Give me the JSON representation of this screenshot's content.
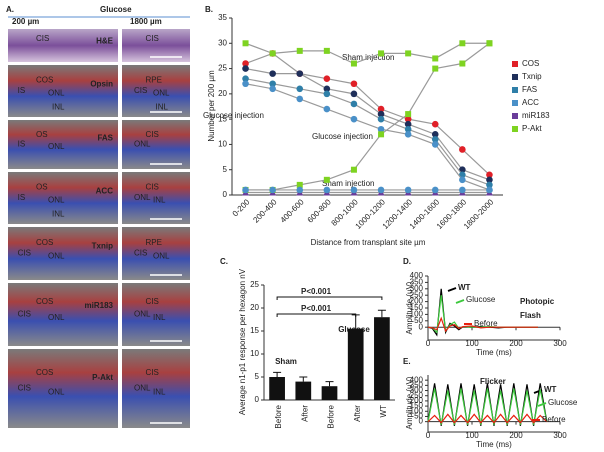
{
  "panel_a": {
    "title": "A.",
    "left_label": "200 µm",
    "center_label": "Glucose",
    "right_label": "1800 µm",
    "rows": [
      {
        "stain": "H&E",
        "stain_color": "#000000",
        "left": [
          "CIS"
        ],
        "right": [
          "CIS"
        ]
      },
      {
        "stain": "Opsin",
        "stain_color": "#e01818",
        "left": [
          "COS",
          "IS",
          "ONL",
          "INL"
        ],
        "right": [
          "RPE",
          "CIS",
          "ONL",
          "INL"
        ]
      },
      {
        "stain": "FAS",
        "stain_color": "#e01818",
        "left": [
          "OS",
          "IS",
          "ONL"
        ],
        "right": [
          "CIS",
          "ONL"
        ]
      },
      {
        "stain": "ACC",
        "stain_color": "#e01818",
        "left": [
          "OS",
          "IS",
          "ONL",
          "INL"
        ],
        "right": [
          "CIS",
          "ONL",
          "INL"
        ]
      },
      {
        "stain": "Txnip",
        "stain_color": "#e01818",
        "left": [
          "COS",
          "CIS",
          "ONL"
        ],
        "right": [
          "RPE",
          "CIS",
          "ONL"
        ]
      },
      {
        "stain": "miR183",
        "stain_color": "#e01818",
        "left": [
          "COS",
          "CIS",
          "ONL"
        ],
        "right": [
          "CIS",
          "ONL",
          "INL"
        ]
      },
      {
        "stain": "P-Akt",
        "stain_color": "#e01818",
        "left": [
          "COS",
          "CIS",
          "ONL"
        ],
        "right": [
          "CIS",
          "ONL",
          "INL"
        ]
      }
    ]
  },
  "chart_data": [
    {
      "type": "line",
      "title": "B.",
      "ylabel": "Number per 200 µm",
      "xlabel": "Distance from transplant site µm",
      "categories": [
        "0-200",
        "200-400",
        "400-600",
        "600-800",
        "800-1000",
        "1000-1200",
        "1200-1400",
        "1400-1600",
        "1600-1800",
        "1800-2000"
      ],
      "ylim": [
        0,
        35
      ],
      "yticks": [
        0,
        5,
        10,
        15,
        20,
        25,
        30,
        35
      ],
      "line_color": "#9a9a9a",
      "series": [
        {
          "name": "COS",
          "color": "#e02028",
          "values": [
            26,
            28,
            24,
            23,
            22,
            17,
            15,
            14,
            9,
            4
          ]
        },
        {
          "name": "Txnip",
          "color": "#1f2f5a",
          "values": [
            25,
            24,
            24,
            21,
            20,
            16,
            14,
            12,
            5,
            3
          ]
        },
        {
          "name": "FAS",
          "color": "#2f7fa8",
          "values": [
            23,
            22,
            21,
            20,
            18,
            15,
            13,
            11,
            4,
            2
          ]
        },
        {
          "name": "ACC",
          "color": "#4a90c8",
          "values": [
            22,
            21,
            19,
            17,
            15,
            13,
            12,
            10,
            3,
            1
          ]
        },
        {
          "name": "miR183",
          "color": "#6a3c9a",
          "marker": "triangle",
          "values": [
            0.5,
            0.5,
            0.5,
            0.5,
            0.5,
            0.5,
            0.5,
            0.5,
            0.5,
            0.5
          ]
        },
        {
          "name": "P-Akt",
          "color": "#7ed321",
          "marker": "square",
          "values": [
            1,
            1,
            2,
            3,
            5,
            12,
            16,
            25,
            26,
            30
          ]
        },
        {
          "color": "#7ed321",
          "marker": "square",
          "values": [
            30,
            28,
            28.5,
            28.5,
            26,
            28,
            28,
            27,
            30,
            30
          ]
        },
        {
          "color": "#4a90c8",
          "values": [
            1,
            1,
            1,
            1,
            1,
            1,
            1,
            1,
            1,
            1
          ]
        }
      ],
      "annotations": [
        "Sham injection",
        "Glucose injection",
        "Glucose injection",
        "Sham injection"
      ],
      "legend": "right"
    },
    {
      "type": "bar",
      "title": "C.",
      "ylabel": "Average n1-p1 response per hexagon nV",
      "categories": [
        "Before",
        "After",
        "Before",
        "After",
        "WT"
      ],
      "values": [
        5,
        4,
        3,
        15.5,
        18
      ],
      "errors": [
        1,
        1,
        1,
        3,
        1.5
      ],
      "color": "#111111",
      "ylim": [
        0,
        25
      ],
      "yticks": [
        0,
        5,
        10,
        15,
        20,
        25
      ],
      "annotations": [
        "P<0.001",
        "P<0.001",
        "Sham",
        "Glucose"
      ]
    },
    {
      "type": "trace",
      "title": "D.",
      "ylabel": "Amplitude (uV)",
      "xlabel": "Time (ms)",
      "x": [
        0,
        10,
        20,
        30,
        40,
        50,
        60,
        70,
        80,
        100,
        120,
        140,
        160,
        180,
        200,
        220,
        240,
        250
      ],
      "xlim": [
        0,
        300
      ],
      "xticks": [
        0,
        100,
        200,
        300
      ],
      "ylim": [
        -100,
        400
      ],
      "yticks": [
        0,
        50,
        100,
        150,
        200,
        250,
        300,
        350,
        400
      ],
      "series": [
        {
          "name": "WT",
          "color": "#000000",
          "values": [
            0,
            -10,
            -60,
            300,
            -40,
            30,
            10,
            -20,
            5,
            0,
            5,
            0,
            -5,
            0,
            0,
            0,
            0,
            0
          ]
        },
        {
          "name": "Glucose",
          "color": "#3cc83c",
          "values": [
            0,
            -5,
            -40,
            250,
            -30,
            20,
            40,
            -10,
            5,
            0,
            0,
            5,
            0,
            0,
            0,
            0,
            0,
            0
          ]
        },
        {
          "name": "Before",
          "color": "#e82010",
          "values": [
            0,
            -5,
            -20,
            70,
            -30,
            10,
            20,
            -10,
            5,
            10,
            -5,
            0,
            0,
            0,
            0,
            0,
            0,
            0
          ]
        }
      ],
      "annotations": [
        "Photopic",
        "Flash"
      ]
    },
    {
      "type": "trace",
      "title": "E.",
      "ylabel": "Amplitude (uV)",
      "xlabel": "Time (ms)",
      "x": [
        0,
        15,
        30,
        45,
        60,
        75,
        90,
        105,
        120,
        135,
        150,
        165,
        180,
        195,
        210,
        225,
        240,
        255,
        270
      ],
      "xlim": [
        0,
        300
      ],
      "xticks": [
        0,
        100,
        200,
        300
      ],
      "ylim": [
        -100,
        450
      ],
      "yticks": [
        0,
        50,
        100,
        150,
        200,
        250,
        300,
        350,
        400
      ],
      "series": [
        {
          "name": "WT",
          "color": "#000000",
          "values": [
            0,
            370,
            -40,
            360,
            -40,
            370,
            -40,
            360,
            -40,
            370,
            -40,
            360,
            -40,
            370,
            -40,
            360,
            -40,
            370,
            0
          ]
        },
        {
          "name": "Glucose",
          "color": "#3cc83c",
          "values": [
            0,
            320,
            -30,
            300,
            -30,
            320,
            -30,
            300,
            -30,
            320,
            -30,
            300,
            -30,
            320,
            -30,
            300,
            -30,
            310,
            0
          ]
        },
        {
          "name": "Before",
          "color": "#e82010",
          "values": [
            0,
            60,
            -10,
            70,
            -10,
            60,
            -10,
            70,
            -10,
            60,
            -10,
            70,
            -10,
            60,
            -10,
            70,
            -10,
            60,
            0
          ]
        }
      ],
      "annotations": [
        "Flicker"
      ]
    }
  ]
}
